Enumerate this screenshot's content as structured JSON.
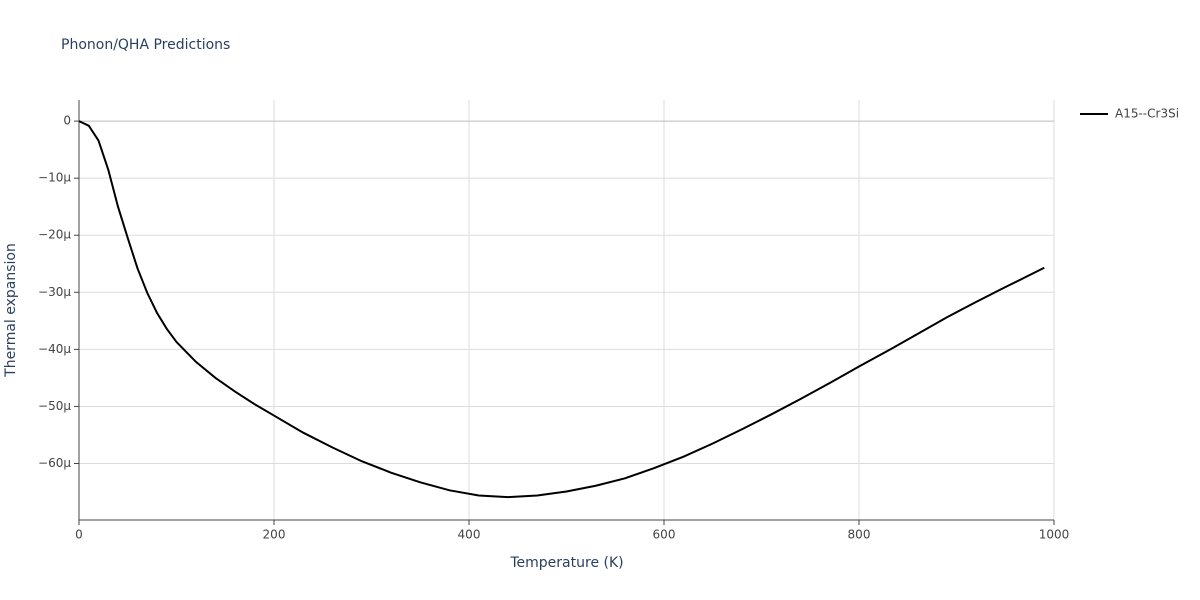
{
  "chart_data": {
    "type": "line",
    "title": "Phonon/QHA Predictions",
    "x_label": "Temperature (K)",
    "y_label": "Thermal expansion",
    "xlim": [
      0,
      1000
    ],
    "xticks": [
      0,
      200,
      400,
      600,
      800,
      1000
    ],
    "ylim": [
      -6.99e-05,
      3.7e-06
    ],
    "yticks": [
      {
        "value": 0,
        "label": "0"
      },
      {
        "value": -1e-05,
        "label": "−10μ"
      },
      {
        "value": -2e-05,
        "label": "−20μ"
      },
      {
        "value": -3e-05,
        "label": "−30μ"
      },
      {
        "value": -4e-05,
        "label": "−40μ"
      },
      {
        "value": -5e-05,
        "label": "−50μ"
      },
      {
        "value": -6e-05,
        "label": "−60μ"
      }
    ],
    "grid": true,
    "x": [
      0,
      10,
      20,
      30,
      40,
      50,
      60,
      70,
      80,
      90,
      100,
      120,
      140,
      160,
      180,
      200,
      230,
      260,
      290,
      320,
      350,
      380,
      410,
      440,
      470,
      500,
      530,
      560,
      590,
      620,
      650,
      680,
      710,
      740,
      770,
      800,
      830,
      860,
      890,
      920,
      950,
      990
    ],
    "series": [
      {
        "name": "A15--Cr3Si",
        "color": "#000000",
        "values": [
          0,
          -8e-07,
          -3.4e-06,
          -8.5e-06,
          -1.5e-05,
          -2.05e-05,
          -2.58e-05,
          -3.01e-05,
          -3.36e-05,
          -3.64e-05,
          -3.87e-05,
          -4.22e-05,
          -4.5e-05,
          -4.74e-05,
          -4.96e-05,
          -5.16e-05,
          -5.46e-05,
          -5.72e-05,
          -5.96e-05,
          -6.16e-05,
          -6.33e-05,
          -6.47e-05,
          -6.56e-05,
          -6.59e-05,
          -6.56e-05,
          -6.49e-05,
          -6.39e-05,
          -6.26e-05,
          -6.08e-05,
          -5.88e-05,
          -5.65e-05,
          -5.4e-05,
          -5.14e-05,
          -4.87e-05,
          -4.59e-05,
          -4.3e-05,
          -4.02e-05,
          -3.73e-05,
          -3.44e-05,
          -3.17e-05,
          -2.91e-05,
          -2.57e-05
        ]
      }
    ]
  }
}
